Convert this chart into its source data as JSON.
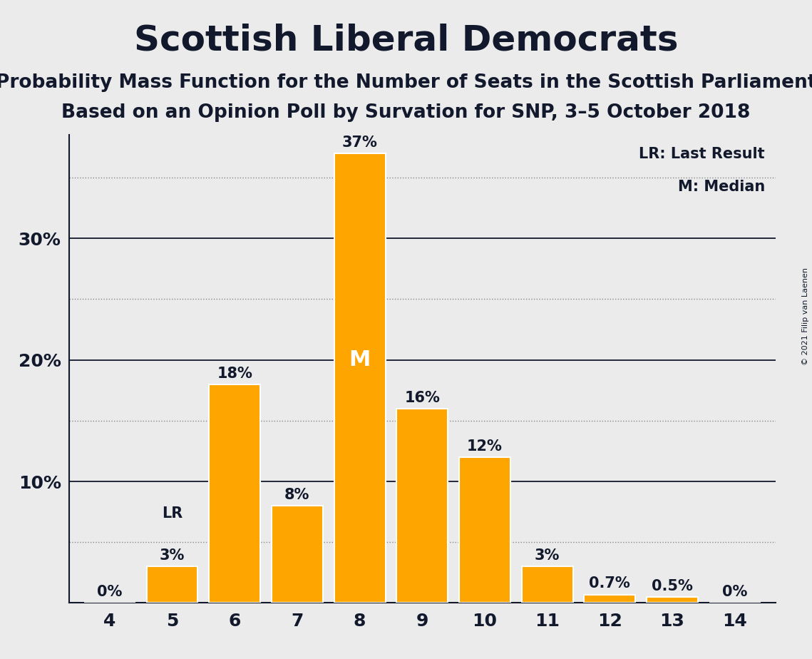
{
  "title": "Scottish Liberal Democrats",
  "subtitle1": "Probability Mass Function for the Number of Seats in the Scottish Parliament",
  "subtitle2": "Based on an Opinion Poll by Survation for SNP, 3–5 October 2018",
  "copyright": "© 2021 Filip van Laenen",
  "seats": [
    4,
    5,
    6,
    7,
    8,
    9,
    10,
    11,
    12,
    13,
    14
  ],
  "probabilities": [
    0.0,
    3.0,
    18.0,
    8.0,
    37.0,
    16.0,
    12.0,
    3.0,
    0.7,
    0.5,
    0.0
  ],
  "labels": [
    "0%",
    "3%",
    "18%",
    "8%",
    "37%",
    "16%",
    "12%",
    "3%",
    "0.7%",
    "0.5%",
    "0%"
  ],
  "bar_color": "#FFA500",
  "bar_edge_color": "#FFFFFF",
  "background_color": "#EBEBEB",
  "text_color": "#12192C",
  "solid_grid_lines": [
    10,
    20,
    30
  ],
  "dotted_grid_lines": [
    5,
    15,
    25,
    35
  ],
  "ytick_labels": [
    "10%",
    "20%",
    "30%"
  ],
  "ytick_values": [
    10,
    20,
    30
  ],
  "ylim": [
    0,
    38.5
  ],
  "xlim_left": 3.35,
  "xlim_right": 14.65,
  "median_seat": 8,
  "lr_seat": 5,
  "legend_lr": "LR: Last Result",
  "legend_m": "M: Median",
  "title_fontsize": 36,
  "subtitle_fontsize": 19,
  "tick_fontsize": 18,
  "label_fontsize": 15,
  "legend_fontsize": 15,
  "bar_width": 0.82
}
